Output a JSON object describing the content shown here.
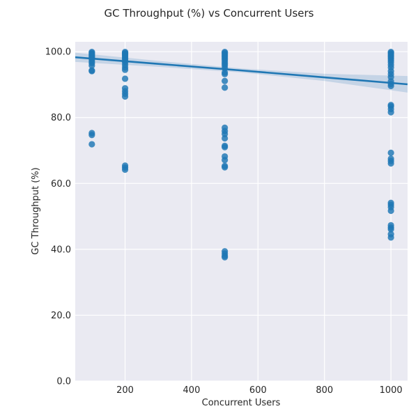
{
  "chart_data": {
    "type": "scatter",
    "title": "GC Throughput (%) vs Concurrent Users",
    "xlabel": "Concurrent Users",
    "ylabel": "GC Throughput (%)",
    "xlim": [
      50,
      1050
    ],
    "ylim": [
      0,
      103
    ],
    "x_ticks": [
      200,
      400,
      600,
      800,
      1000
    ],
    "x_tick_labels": [
      "200",
      "400",
      "600",
      "800",
      "1000"
    ],
    "y_ticks": [
      0,
      20,
      40,
      60,
      80,
      100
    ],
    "y_tick_labels": [
      "0.0",
      "20.0",
      "40.0",
      "60.0",
      "80.0",
      "100.0"
    ],
    "grid": true,
    "colors": {
      "background": "#eaeaf2",
      "point": "#1f77b4",
      "band": "#1f77b4"
    },
    "points": [
      {
        "x": 100,
        "y": 99.9
      },
      {
        "x": 100,
        "y": 99.6
      },
      {
        "x": 100,
        "y": 99.3
      },
      {
        "x": 100,
        "y": 99.0
      },
      {
        "x": 100,
        "y": 98.7
      },
      {
        "x": 100,
        "y": 98.4
      },
      {
        "x": 100,
        "y": 98.0
      },
      {
        "x": 100,
        "y": 97.6
      },
      {
        "x": 100,
        "y": 97.0
      },
      {
        "x": 100,
        "y": 96.5
      },
      {
        "x": 100,
        "y": 95.8
      },
      {
        "x": 100,
        "y": 94.3
      },
      {
        "x": 100,
        "y": 94.1
      },
      {
        "x": 100,
        "y": 75.3
      },
      {
        "x": 100,
        "y": 74.7
      },
      {
        "x": 100,
        "y": 71.9
      },
      {
        "x": 200,
        "y": 99.9
      },
      {
        "x": 200,
        "y": 99.6
      },
      {
        "x": 200,
        "y": 99.3
      },
      {
        "x": 200,
        "y": 99.0
      },
      {
        "x": 200,
        "y": 98.6
      },
      {
        "x": 200,
        "y": 98.2
      },
      {
        "x": 200,
        "y": 97.8
      },
      {
        "x": 200,
        "y": 97.3
      },
      {
        "x": 200,
        "y": 96.8
      },
      {
        "x": 200,
        "y": 96.0
      },
      {
        "x": 200,
        "y": 95.2
      },
      {
        "x": 200,
        "y": 94.5
      },
      {
        "x": 200,
        "y": 91.8
      },
      {
        "x": 200,
        "y": 88.9
      },
      {
        "x": 200,
        "y": 88.0
      },
      {
        "x": 200,
        "y": 87.2
      },
      {
        "x": 200,
        "y": 86.4
      },
      {
        "x": 200,
        "y": 65.4
      },
      {
        "x": 200,
        "y": 64.8
      },
      {
        "x": 200,
        "y": 64.2
      },
      {
        "x": 500,
        "y": 99.9
      },
      {
        "x": 500,
        "y": 99.6
      },
      {
        "x": 500,
        "y": 99.2
      },
      {
        "x": 500,
        "y": 98.8
      },
      {
        "x": 500,
        "y": 98.4
      },
      {
        "x": 500,
        "y": 97.9
      },
      {
        "x": 500,
        "y": 97.5
      },
      {
        "x": 500,
        "y": 96.9
      },
      {
        "x": 500,
        "y": 96.3
      },
      {
        "x": 500,
        "y": 95.8
      },
      {
        "x": 500,
        "y": 95.0
      },
      {
        "x": 500,
        "y": 93.7
      },
      {
        "x": 500,
        "y": 93.2
      },
      {
        "x": 500,
        "y": 91.1
      },
      {
        "x": 500,
        "y": 89.1
      },
      {
        "x": 500,
        "y": 76.9
      },
      {
        "x": 500,
        "y": 75.9
      },
      {
        "x": 500,
        "y": 75.0
      },
      {
        "x": 500,
        "y": 73.7
      },
      {
        "x": 500,
        "y": 71.4
      },
      {
        "x": 500,
        "y": 71.0
      },
      {
        "x": 500,
        "y": 68.2
      },
      {
        "x": 500,
        "y": 67.1
      },
      {
        "x": 500,
        "y": 65.3
      },
      {
        "x": 500,
        "y": 64.9
      },
      {
        "x": 500,
        "y": 39.4
      },
      {
        "x": 500,
        "y": 38.7
      },
      {
        "x": 500,
        "y": 38.0
      },
      {
        "x": 500,
        "y": 37.6
      },
      {
        "x": 1000,
        "y": 99.9
      },
      {
        "x": 1000,
        "y": 99.6
      },
      {
        "x": 1000,
        "y": 99.2
      },
      {
        "x": 1000,
        "y": 98.8
      },
      {
        "x": 1000,
        "y": 98.4
      },
      {
        "x": 1000,
        "y": 97.9
      },
      {
        "x": 1000,
        "y": 97.4
      },
      {
        "x": 1000,
        "y": 96.8
      },
      {
        "x": 1000,
        "y": 96.0
      },
      {
        "x": 1000,
        "y": 95.2
      },
      {
        "x": 1000,
        "y": 94.1
      },
      {
        "x": 1000,
        "y": 93.2
      },
      {
        "x": 1000,
        "y": 92.3
      },
      {
        "x": 1000,
        "y": 91.0
      },
      {
        "x": 1000,
        "y": 90.2
      },
      {
        "x": 1000,
        "y": 89.6
      },
      {
        "x": 1000,
        "y": 83.8
      },
      {
        "x": 1000,
        "y": 83.4
      },
      {
        "x": 1000,
        "y": 82.6
      },
      {
        "x": 1000,
        "y": 81.6
      },
      {
        "x": 1000,
        "y": 69.3
      },
      {
        "x": 1000,
        "y": 67.5
      },
      {
        "x": 1000,
        "y": 66.8
      },
      {
        "x": 1000,
        "y": 66.1
      },
      {
        "x": 1000,
        "y": 54.1
      },
      {
        "x": 1000,
        "y": 53.5
      },
      {
        "x": 1000,
        "y": 52.8
      },
      {
        "x": 1000,
        "y": 51.7
      },
      {
        "x": 1000,
        "y": 47.3
      },
      {
        "x": 1000,
        "y": 46.6
      },
      {
        "x": 1000,
        "y": 46.1
      },
      {
        "x": 1000,
        "y": 44.6
      },
      {
        "x": 1000,
        "y": 43.6
      }
    ],
    "regression": {
      "x": [
        50,
        300,
        550,
        800,
        1050
      ],
      "y": [
        98.3,
        96.3,
        94.3,
        92.2,
        90.1
      ],
      "ci_upper": [
        99.7,
        97.2,
        94.9,
        93.3,
        92.6
      ],
      "ci_lower": [
        96.9,
        95.4,
        93.7,
        91.1,
        87.6
      ]
    }
  }
}
